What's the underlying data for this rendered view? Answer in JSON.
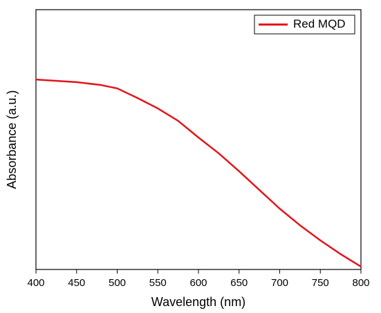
{
  "chart_data": {
    "type": "line",
    "xlabel": "Wavelength (nm)",
    "ylabel": "Absorbance (a.u.)",
    "x": [
      400,
      450,
      480,
      500,
      525,
      550,
      575,
      600,
      625,
      650,
      675,
      700,
      725,
      750,
      775,
      800
    ],
    "series": [
      {
        "name": "Red MQD",
        "color": "#e3141b",
        "values": [
          0.731,
          0.721,
          0.71,
          0.697,
          0.66,
          0.62,
          0.572,
          0.508,
          0.447,
          0.378,
          0.306,
          0.234,
          0.17,
          0.112,
          0.059,
          0.011
        ]
      }
    ],
    "xlim": [
      400,
      800
    ],
    "ylim": [
      0,
      1
    ],
    "xticks": [
      400,
      450,
      500,
      550,
      600,
      650,
      700,
      750,
      800
    ],
    "legend": "upper right"
  }
}
